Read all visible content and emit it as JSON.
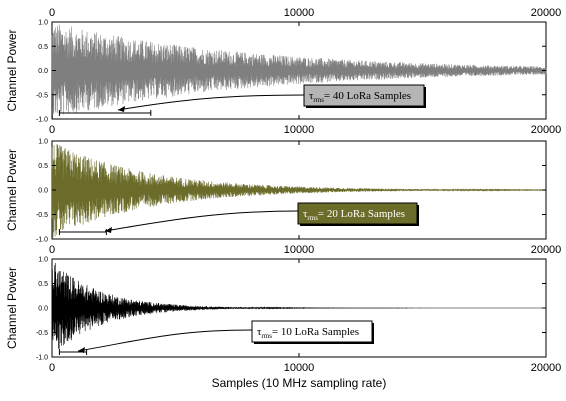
{
  "chart_data": [
    {
      "type": "line",
      "panel": "top",
      "ylabel": "Channel Power",
      "xlabel": "",
      "xlim": [
        0,
        20000
      ],
      "ylim": [
        -1.0,
        1.0
      ],
      "x_ticks": [
        0,
        10000,
        20000
      ],
      "x_tick_labels": [
        "0",
        "10000",
        "20000"
      ],
      "y_ticks": [
        -1.0,
        -0.5,
        0.0,
        0.5,
        1.0
      ],
      "y_tick_labels": [
        "-1.0",
        "-0.5",
        "0.0",
        "0.5",
        "1.0"
      ],
      "top_axis_labels": [
        "0",
        "10000",
        "20000"
      ],
      "series": [
        {
          "color": "#7f7f7f",
          "tau_rms": 40,
          "envelope_decay_samples": 8000,
          "peak_amplitude": 1.0
        }
      ],
      "annotation": {
        "prefix": "τ",
        "subscript": "rms",
        "text": "= 40 LoRa Samples",
        "bg": "#b5b5b5",
        "bracket_x": [
          300,
          4000
        ]
      },
      "grid": false
    },
    {
      "type": "line",
      "panel": "middle",
      "ylabel": "Channel Power",
      "xlabel": "",
      "xlim": [
        0,
        20000
      ],
      "ylim": [
        -1.0,
        1.0
      ],
      "x_ticks": [
        0,
        10000,
        20000
      ],
      "x_tick_labels": [
        "0",
        "10000",
        "20000"
      ],
      "y_ticks": [
        -1.0,
        -0.5,
        0.0,
        0.5,
        1.0
      ],
      "y_tick_labels": [
        "-1.0",
        "-0.5",
        "0.0",
        "0.5",
        "1.0"
      ],
      "series": [
        {
          "color": "#6b6b2a",
          "tau_rms": 20,
          "envelope_decay_samples": 3800,
          "peak_amplitude": 1.0
        }
      ],
      "annotation": {
        "prefix": "τ",
        "subscript": "rms",
        "text": "= 20 LoRa Samples",
        "bg": "#6b6b2a",
        "bracket_x": [
          300,
          2200
        ]
      },
      "grid": false
    },
    {
      "type": "line",
      "panel": "bottom",
      "ylabel": "Channel Power",
      "xlabel": "Samples (10 MHz sampling rate)",
      "xlim": [
        0,
        20000
      ],
      "ylim": [
        -1.0,
        1.0
      ],
      "x_ticks": [
        0,
        10000,
        20000
      ],
      "x_tick_labels": [
        "0",
        "10000",
        "20000"
      ],
      "y_ticks": [
        -1.0,
        -0.5,
        0.0,
        0.5,
        1.0
      ],
      "y_tick_labels": [
        "-1.0",
        "-0.5",
        "0.0",
        "0.5",
        "1.0"
      ],
      "series": [
        {
          "color": "#000000",
          "tau_rms": 10,
          "envelope_decay_samples": 1900,
          "peak_amplitude": 1.0
        }
      ],
      "annotation": {
        "prefix": "τ",
        "subscript": "rms",
        "text": "= 10 LoRa Samples",
        "bg": "#ffffff",
        "bracket_x": [
          300,
          1400
        ]
      },
      "grid": false
    }
  ]
}
